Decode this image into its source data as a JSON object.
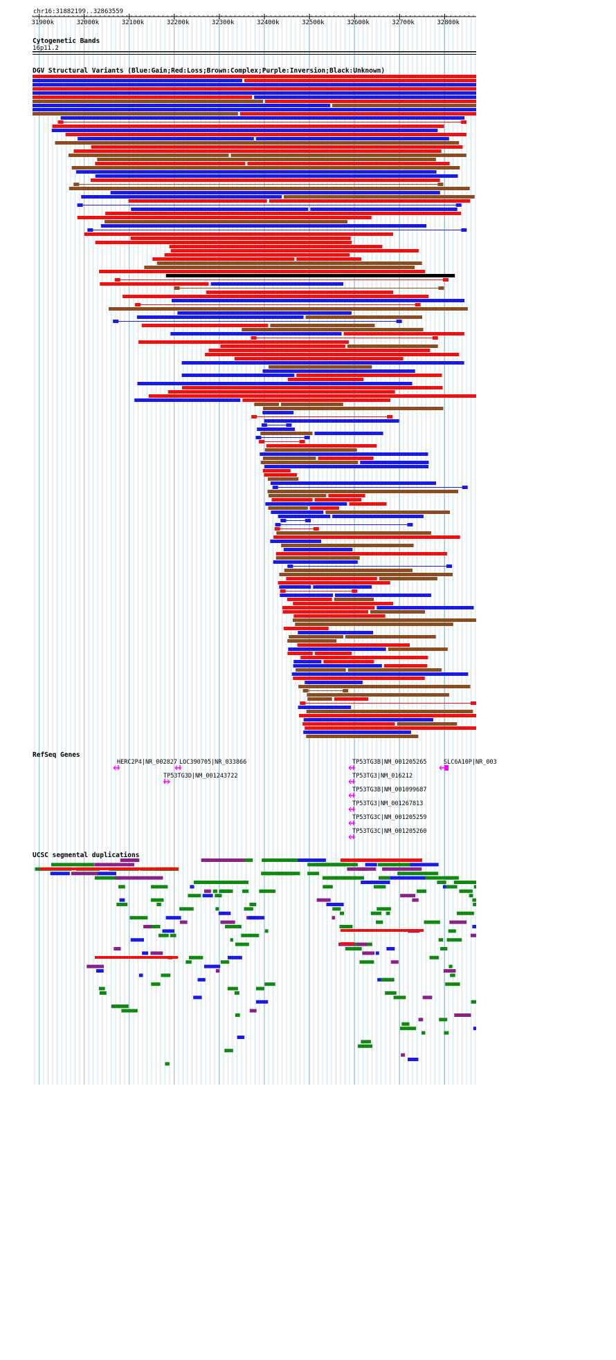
{
  "ruler": {
    "range_label": "chr16:31882199..32863559",
    "ticks": [
      "31900k",
      "32000k",
      "32100k",
      "32200k",
      "32300k",
      "32400k",
      "32500k",
      "32600k",
      "32700k",
      "32800k"
    ]
  },
  "cytoband": {
    "title": "Cytogenetic Bands",
    "band_label": "16p11.2"
  },
  "dgv": {
    "title": "DGV Structural Variants (Blue:Gain;Red:Loss;Brown:Complex;Purple:Inversion;Black:Unknown)",
    "colors": {
      "gain": "#1a1ae6",
      "loss": "#ee1111",
      "complex": "#8b4c22",
      "inversion": "#882288",
      "unknown": "#000000"
    }
  },
  "refseq": {
    "title": "RefSeq Genes",
    "genes": [
      {
        "label": "HERC2P4|NR_002827",
        "strand": "-"
      },
      {
        "label": "LOC390705|NR_033866",
        "strand": "-"
      },
      {
        "label": "TP53TG3D|NM_001243722",
        "strand": "+"
      },
      {
        "label": "TP53TG3B|NM_001205265",
        "strand": "-"
      },
      {
        "label": "TP53TG3|NM_016212",
        "strand": "-"
      },
      {
        "label": "TP53TG3B|NM_001099687",
        "strand": "-"
      },
      {
        "label": "TP53TG3|NM_001267813",
        "strand": "-"
      },
      {
        "label": "TP53TG3C|NM_001205259",
        "strand": "-"
      },
      {
        "label": "TP53TG3C|NM_001205260",
        "strand": "-"
      },
      {
        "label": "SLC6A10P|NR_003",
        "strand": "-"
      }
    ],
    "color": "#ff00ff"
  },
  "segdup": {
    "title": "UCSC segmental duplications",
    "colors": {
      "purple": "#882288",
      "green": "#118811",
      "blue": "#1a1ae6",
      "red": "#ee1111"
    }
  }
}
